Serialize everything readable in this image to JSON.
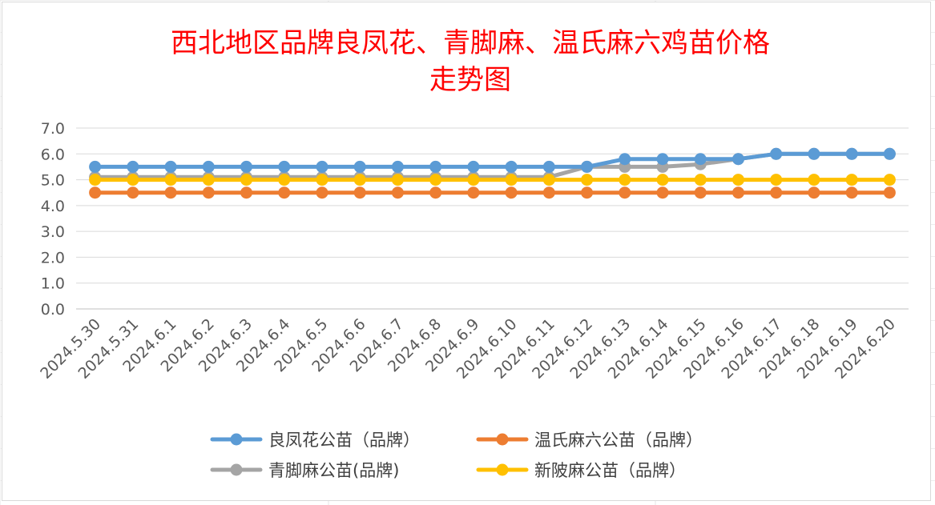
{
  "chart_data": {
    "type": "line",
    "title_lines": [
      "西北地区品牌良凤花、青脚麻、温氏麻六鸡苗价格",
      "走势图"
    ],
    "xlabel": "",
    "ylabel": "",
    "ylim": [
      0,
      7
    ],
    "yticks": [
      "7.0",
      "6.0",
      "5.0",
      "4.0",
      "3.0",
      "2.0",
      "1.0",
      "0.0"
    ],
    "ytick_values": [
      7,
      6,
      5,
      4,
      3,
      2,
      1,
      0
    ],
    "grid": true,
    "legend_position": "bottom",
    "categories": [
      "2024.5.30",
      "2024.5.31",
      "2024.6.1",
      "2024.6.2",
      "2024.6.3",
      "2024.6.4",
      "2024.6.5",
      "2024.6.6",
      "2024.6.7",
      "2024.6.8",
      "2024.6.9",
      "2024.6.10",
      "2024.6.11",
      "2024.6.12",
      "2024.6.13",
      "2024.6.14",
      "2024.6.15",
      "2024.6.16",
      "2024.6.17",
      "2024.6.18",
      "2024.6.19",
      "2024.6.20"
    ],
    "series": [
      {
        "name": "良凤花公苗（品牌）",
        "color": "#5b9bd5",
        "values": [
          5.5,
          5.5,
          5.5,
          5.5,
          5.5,
          5.5,
          5.5,
          5.5,
          5.5,
          5.5,
          5.5,
          5.5,
          5.5,
          5.5,
          5.8,
          5.8,
          5.8,
          5.8,
          6.0,
          6.0,
          6.0,
          6.0
        ]
      },
      {
        "name": "温氏麻六公苗（品牌）",
        "color": "#ed7d31",
        "values": [
          4.5,
          4.5,
          4.5,
          4.5,
          4.5,
          4.5,
          4.5,
          4.5,
          4.5,
          4.5,
          4.5,
          4.5,
          4.5,
          4.5,
          4.5,
          4.5,
          4.5,
          4.5,
          4.5,
          4.5,
          4.5,
          4.5
        ]
      },
      {
        "name": "青脚麻公苗(品牌)",
        "color": "#a5a5a5",
        "values": [
          5.1,
          5.1,
          5.1,
          5.1,
          5.1,
          5.1,
          5.1,
          5.1,
          5.1,
          5.1,
          5.1,
          5.1,
          5.1,
          5.5,
          5.5,
          5.5,
          5.6,
          5.8,
          6.0,
          6.0,
          6.0,
          6.0
        ]
      },
      {
        "name": "新陂麻公苗（品牌）",
        "color": "#ffc000",
        "values": [
          5.0,
          5.0,
          5.0,
          5.0,
          5.0,
          5.0,
          5.0,
          5.0,
          5.0,
          5.0,
          5.0,
          5.0,
          5.0,
          5.0,
          5.0,
          5.0,
          5.0,
          5.0,
          5.0,
          5.0,
          5.0,
          5.0
        ]
      }
    ],
    "draw_order": [
      2,
      0,
      1,
      3
    ],
    "legend_order": [
      0,
      1,
      2,
      3
    ]
  }
}
